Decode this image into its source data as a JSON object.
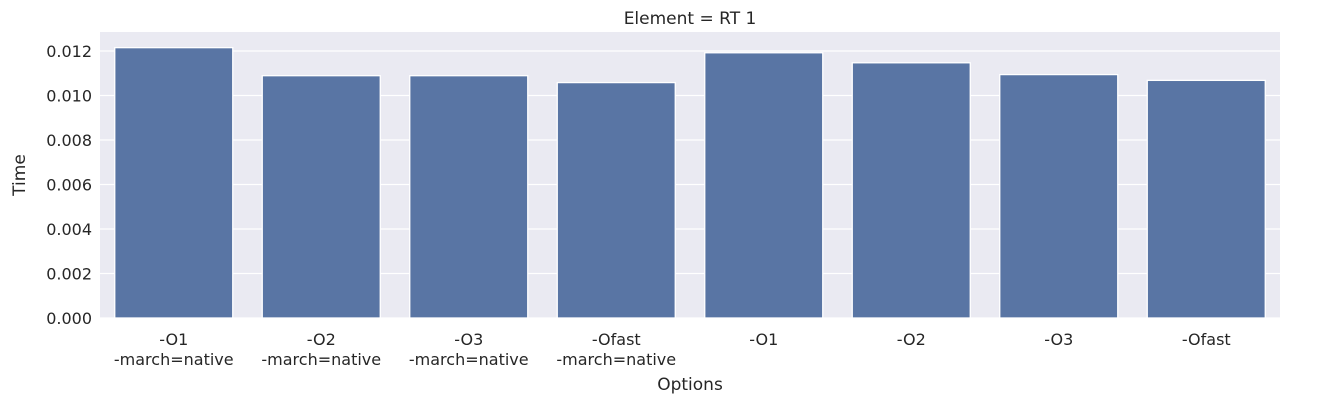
{
  "chart_data": {
    "type": "bar",
    "title": "Element = RT 1",
    "xlabel": "Options",
    "ylabel": "Time",
    "categories": [
      "-O1\n-march=native",
      "-O2\n-march=native",
      "-O3\n-march=native",
      "-Ofast\n-march=native",
      "-O1",
      "-O2",
      "-O3",
      "-Ofast"
    ],
    "values": [
      0.01215,
      0.01089,
      0.01089,
      0.01058,
      0.01192,
      0.01147,
      0.01094,
      0.01068
    ],
    "ylim": [
      0,
      0.0128
    ],
    "yticks": [
      "0.000",
      "0.002",
      "0.004",
      "0.006",
      "0.008",
      "0.010",
      "0.012"
    ],
    "grid": true,
    "bar_color": "#5975a4",
    "background_color": "#eaeaf2"
  }
}
